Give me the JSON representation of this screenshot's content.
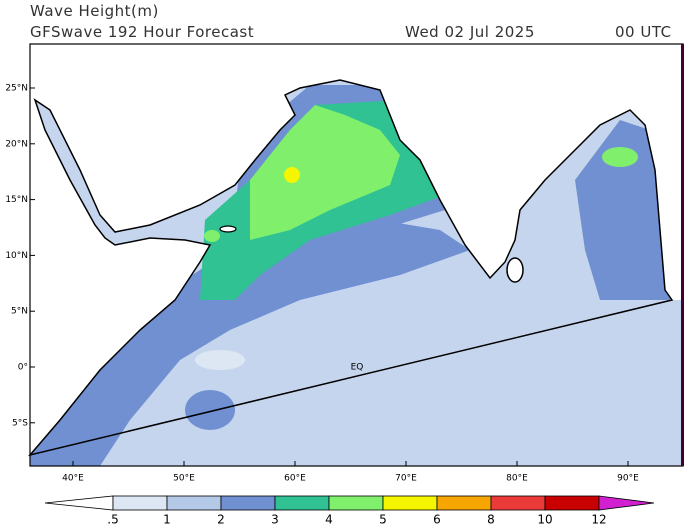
{
  "header": {
    "title": "Wave Height(m)",
    "subtitle": "GFSwave 192 Hour Forecast",
    "date": "Wed 02 Jul 2025",
    "time": "00 UTC"
  },
  "map": {
    "lat_labels": [
      "25°N",
      "20°N",
      "15°N",
      "10°N",
      "5°N",
      "0°",
      "5°S"
    ],
    "lon_labels": [
      "40°E",
      "50°E",
      "60°E",
      "70°E",
      "80°E",
      "90°E"
    ],
    "equator_label": "EQ"
  },
  "colorbar": {
    "labels": [
      ".5",
      "1",
      "2",
      "3",
      "4",
      "5",
      "6",
      "8",
      "10",
      "12"
    ],
    "colors": [
      "#ffffff",
      "#dde7f4",
      "#b4c8e8",
      "#7090d2",
      "#30c293",
      "#80f06c",
      "#f5f500",
      "#f7a500",
      "#ea3a3a",
      "#c80000",
      "#d020d0"
    ]
  }
}
